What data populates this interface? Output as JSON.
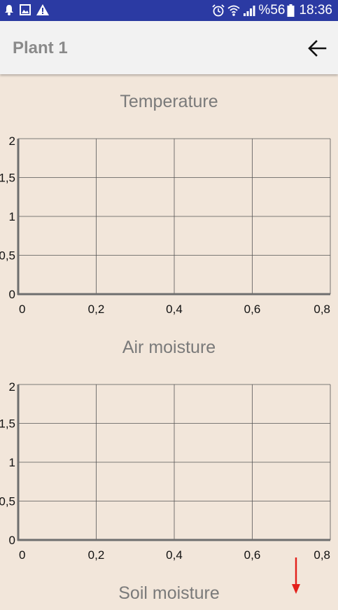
{
  "status_bar": {
    "icons_left": [
      "notification-bell-icon",
      "image-icon",
      "warning-icon"
    ],
    "icons_right": [
      "alarm-icon",
      "wifi-icon",
      "signal-icon"
    ],
    "battery_text": "%56",
    "battery_icon": "battery-icon",
    "time": "18:36",
    "color": "#2b3aa3"
  },
  "toolbar": {
    "title": "Plant 1",
    "back_icon": "arrow-back-icon"
  },
  "background_color": "#f2e6da",
  "charts": [
    {
      "title": "Temperature"
    },
    {
      "title": "Air moisture"
    },
    {
      "title": "Soil moisture"
    }
  ],
  "chart_data": [
    {
      "type": "line",
      "title": "Temperature",
      "x_ticks": [
        "0",
        "0,2",
        "0,4",
        "0,6",
        "0,8"
      ],
      "y_ticks": [
        "0",
        "0,5",
        "1",
        "1,5",
        "2"
      ],
      "xlim": [
        0,
        0.8
      ],
      "ylim": [
        0,
        2
      ],
      "grid": true,
      "series": []
    },
    {
      "type": "line",
      "title": "Air moisture",
      "x_ticks": [
        "0",
        "0,2",
        "0,4",
        "0,6",
        "0,8"
      ],
      "y_ticks": [
        "0",
        "0,5",
        "1",
        "1,5",
        "2"
      ],
      "xlim": [
        0,
        0.8
      ],
      "ylim": [
        0,
        2
      ],
      "grid": true,
      "series": []
    }
  ],
  "scroll_indicator_icon": "arrow-down-icon"
}
